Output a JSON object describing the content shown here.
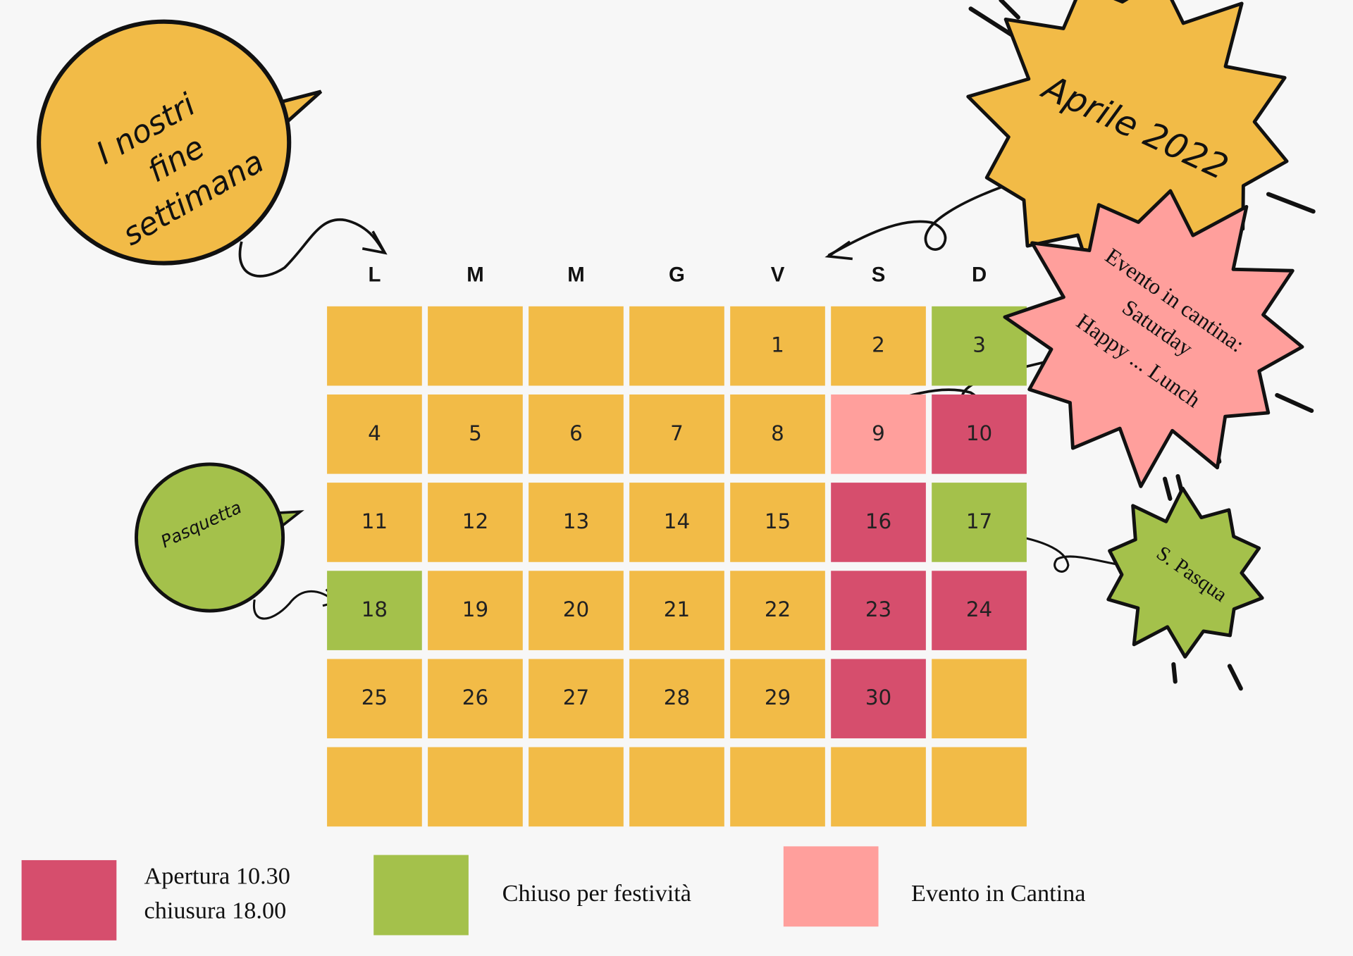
{
  "title": "Aprile 2022",
  "weekdays": [
    "L",
    "M",
    "M",
    "G",
    "V",
    "S",
    "D"
  ],
  "weeks": [
    [
      {
        "day": null,
        "color": "#f2bb47"
      },
      {
        "day": null,
        "color": "#f2bb47"
      },
      {
        "day": null,
        "color": "#f2bb47"
      },
      {
        "day": null,
        "color": "#f2bb47"
      },
      {
        "day": 1,
        "color": "#f2bb47"
      },
      {
        "day": 2,
        "color": "#f2bb47"
      },
      {
        "day": 3,
        "color": "#a4c14b"
      }
    ],
    [
      {
        "day": 4,
        "color": "#f2bb47"
      },
      {
        "day": 5,
        "color": "#f2bb47"
      },
      {
        "day": 6,
        "color": "#f2bb47"
      },
      {
        "day": 7,
        "color": "#f2bb47"
      },
      {
        "day": 8,
        "color": "#f2bb47"
      },
      {
        "day": 9,
        "color": "#ff9f9c"
      },
      {
        "day": 10,
        "color": "#d64e6d"
      }
    ],
    [
      {
        "day": 11,
        "color": "#f2bb47"
      },
      {
        "day": 12,
        "color": "#f2bb47"
      },
      {
        "day": 13,
        "color": "#f2bb47"
      },
      {
        "day": 14,
        "color": "#f2bb47"
      },
      {
        "day": 15,
        "color": "#f2bb47"
      },
      {
        "day": 16,
        "color": "#d64e6d"
      },
      {
        "day": 17,
        "color": "#a4c14b"
      }
    ],
    [
      {
        "day": 18,
        "color": "#a4c14b"
      },
      {
        "day": 19,
        "color": "#f2bb47"
      },
      {
        "day": 20,
        "color": "#f2bb47"
      },
      {
        "day": 21,
        "color": "#f2bb47"
      },
      {
        "day": 22,
        "color": "#f2bb47"
      },
      {
        "day": 23,
        "color": "#d64e6d"
      },
      {
        "day": 24,
        "color": "#d64e6d"
      }
    ],
    [
      {
        "day": 25,
        "color": "#f2bb47"
      },
      {
        "day": 26,
        "color": "#f2bb47"
      },
      {
        "day": 27,
        "color": "#f2bb47"
      },
      {
        "day": 28,
        "color": "#f2bb47"
      },
      {
        "day": 29,
        "color": "#f2bb47"
      },
      {
        "day": 30,
        "color": "#d64e6d"
      },
      {
        "day": null,
        "color": "#f2bb47"
      }
    ],
    [
      {
        "day": null,
        "color": "#f2bb47"
      },
      {
        "day": null,
        "color": "#f2bb47"
      },
      {
        "day": null,
        "color": "#f2bb47"
      },
      {
        "day": null,
        "color": "#f2bb47"
      },
      {
        "day": null,
        "color": "#f2bb47"
      },
      {
        "day": null,
        "color": "#f2bb47"
      },
      {
        "day": null,
        "color": "#f2bb47"
      }
    ]
  ],
  "legend": [
    {
      "lines": [
        "Apertura 10.30",
        "chiusura 18.00"
      ],
      "color": "#d64e6d"
    },
    {
      "lines": [
        "Chiuso per festività"
      ],
      "color": "#a4c14b"
    },
    {
      "lines": [
        "Evento in Cantina"
      ],
      "color": "#ff9f9c"
    }
  ],
  "callouts": {
    "weekends": [
      "I nostri",
      "fine",
      "settimana"
    ],
    "pasquetta": "Pasquetta",
    "pasqua": "S. Pasqua",
    "event": [
      "Evento in cantina:",
      "Saturday",
      "Happy ... Lunch"
    ]
  }
}
